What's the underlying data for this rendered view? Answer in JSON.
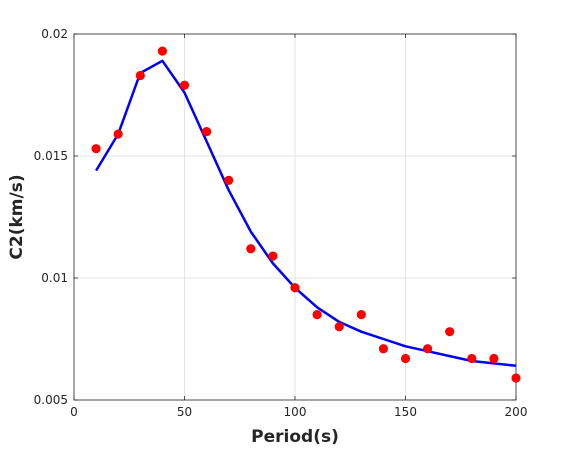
{
  "chart_data": {
    "type": "scatter",
    "title": "",
    "xlabel": "Period(s)",
    "ylabel": "C2(km/s)",
    "xlim": [
      0,
      200
    ],
    "ylim": [
      0.005,
      0.02
    ],
    "x_ticks": [
      0,
      50,
      100,
      150,
      200
    ],
    "x_tick_labels": [
      "0",
      "50",
      "100",
      "150",
      "200"
    ],
    "y_ticks": [
      0.005,
      0.01,
      0.015,
      0.02
    ],
    "y_tick_labels": [
      "0.005",
      "0.01",
      "0.015",
      "0.02"
    ],
    "grid": true,
    "series": [
      {
        "kind": "points",
        "color": "#ff0000",
        "x": [
          10,
          20,
          30,
          40,
          50,
          60,
          70,
          80,
          90,
          100,
          110,
          120,
          130,
          140,
          150,
          160,
          170,
          180,
          190,
          200
        ],
        "y": [
          0.0153,
          0.0159,
          0.0183,
          0.0193,
          0.0179,
          0.016,
          0.014,
          0.0112,
          0.0109,
          0.0096,
          0.0085,
          0.008,
          0.0085,
          0.0071,
          0.0067,
          0.0071,
          0.0078,
          0.0067,
          0.0067,
          0.0059
        ]
      },
      {
        "kind": "line",
        "color": "#0000ff",
        "x": [
          10,
          20,
          30,
          40,
          50,
          60,
          70,
          80,
          90,
          100,
          110,
          120,
          130,
          140,
          150,
          160,
          170,
          180,
          190,
          200
        ],
        "y": [
          0.0144,
          0.0159,
          0.0184,
          0.0189,
          0.0176,
          0.0156,
          0.0136,
          0.0119,
          0.0106,
          0.0096,
          0.0088,
          0.0082,
          0.0078,
          0.0075,
          0.0072,
          0.007,
          0.0068,
          0.0066,
          0.0065,
          0.0064
        ]
      }
    ]
  }
}
